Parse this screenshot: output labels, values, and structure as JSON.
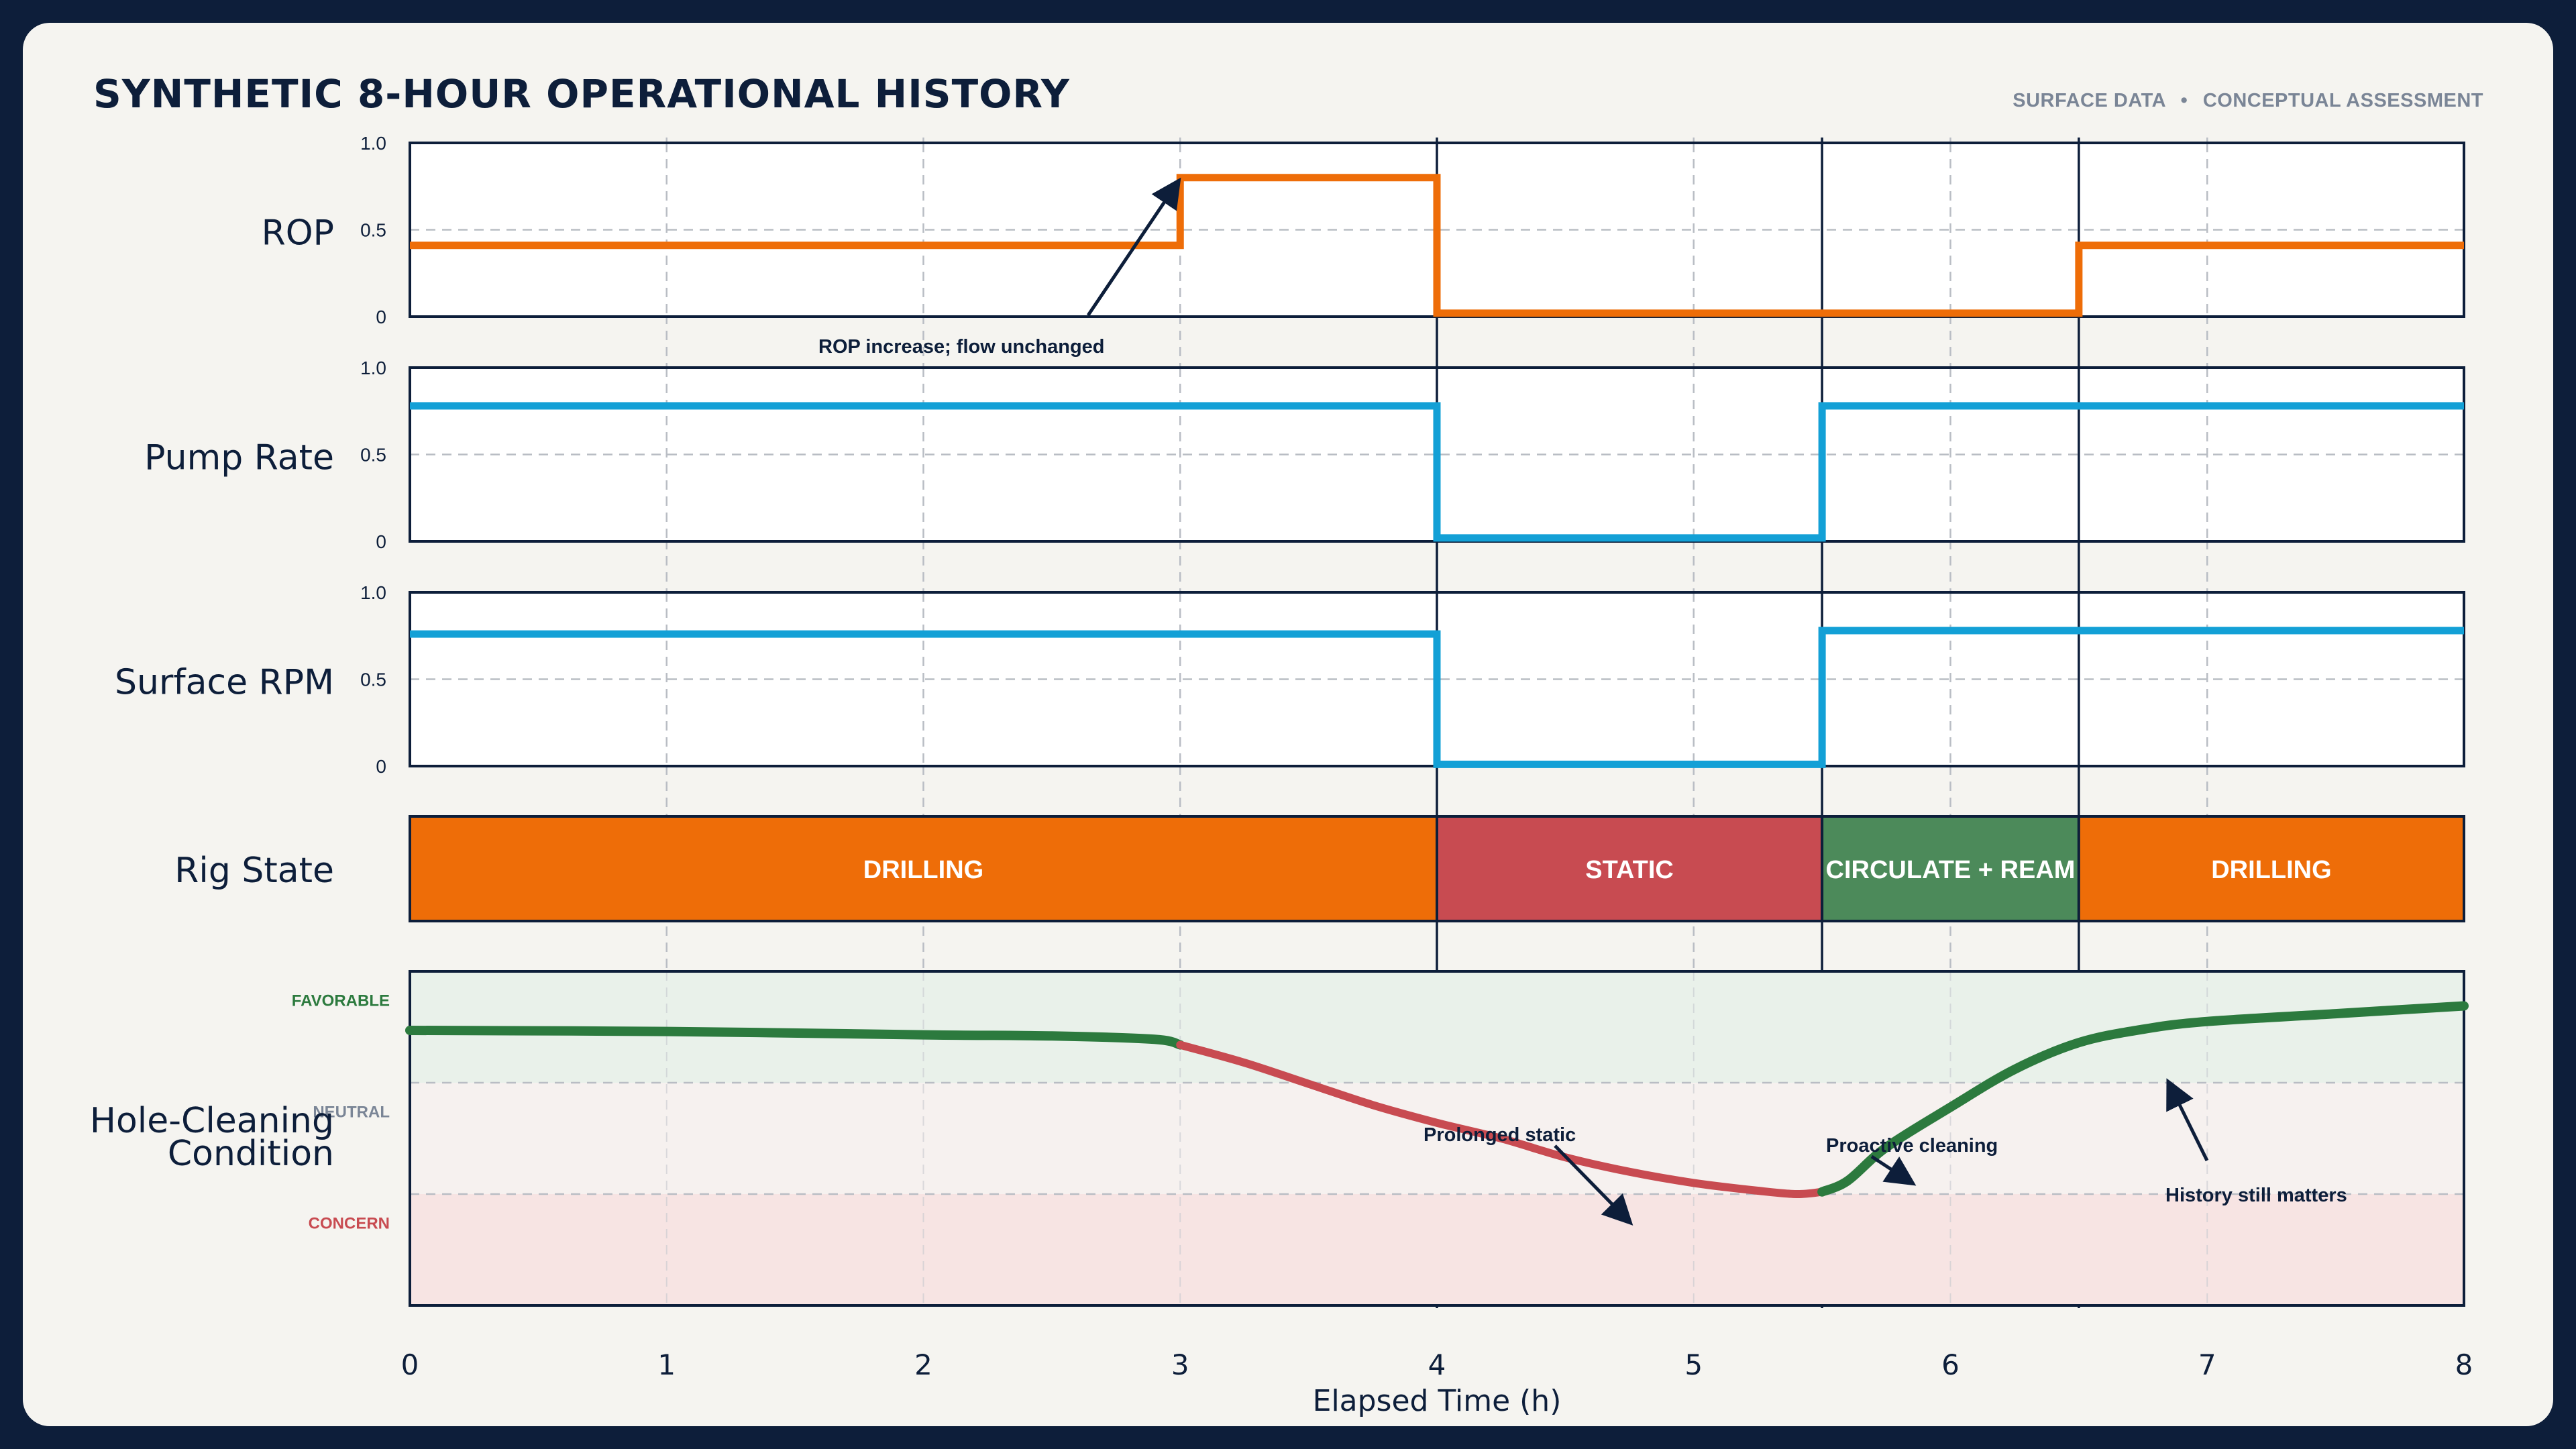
{
  "header": {
    "title": "SYNTHETIC 8-HOUR OPERATIONAL HISTORY",
    "subtitle_left": "SURFACE DATA",
    "subtitle_separator": "•",
    "subtitle_right": "CONCEPTUAL ASSESSMENT"
  },
  "colors": {
    "navy": "#0d1e3a",
    "orange": "#ee6d08",
    "blue": "#13a0d6",
    "red": "#c84b51",
    "green": "#2c7a3e",
    "green_fill": "#4c8a5a",
    "favorable_band": "#e9f1ea",
    "concern_band": "#f7e4e3"
  },
  "chart_data": {
    "type": "line",
    "x": [
      0,
      1,
      2,
      3,
      4,
      5,
      6,
      7,
      8
    ],
    "x_tick_labels": [
      "0",
      "1",
      "2",
      "3",
      "4",
      "5",
      "6",
      "7",
      "8"
    ],
    "xlabel": "Elapsed Time (h)",
    "xlim": [
      0,
      8
    ],
    "phase_boundaries_h": [
      4,
      5.5,
      6.5
    ],
    "panels": [
      {
        "label": "ROP",
        "ylim": [
          0,
          1
        ],
        "y_ticks": [
          0,
          0.5,
          1
        ],
        "y_tick_labels": [
          "0",
          "0.5",
          "1.0"
        ],
        "color": "#ee6d08",
        "steps": [
          {
            "x0": 0,
            "x1": 3,
            "y": 0.41
          },
          {
            "x0": 3,
            "x1": 4,
            "y": 0.8
          },
          {
            "x0": 4,
            "x1": 6.5,
            "y": 0.02
          },
          {
            "x0": 6.5,
            "x1": 8,
            "y": 0.41
          }
        ],
        "annotation": {
          "text": "ROP increase; flow unchanged",
          "target": [
            3,
            0.8
          ]
        }
      },
      {
        "label": "Pump Rate",
        "ylim": [
          0,
          1
        ],
        "y_ticks": [
          0,
          0.5,
          1
        ],
        "y_tick_labels": [
          "0",
          "0.5",
          "1.0"
        ],
        "color": "#13a0d6",
        "steps": [
          {
            "x0": 0,
            "x1": 4,
            "y": 0.78
          },
          {
            "x0": 4,
            "x1": 5.5,
            "y": 0.02
          },
          {
            "x0": 5.5,
            "x1": 8,
            "y": 0.78
          }
        ]
      },
      {
        "label": "Surface RPM",
        "ylim": [
          0,
          1
        ],
        "y_ticks": [
          0,
          0.5,
          1
        ],
        "y_tick_labels": [
          "0",
          "0.5",
          "1.0"
        ],
        "color": "#13a0d6",
        "steps": [
          {
            "x0": 0,
            "x1": 4,
            "y": 0.76
          },
          {
            "x0": 4,
            "x1": 5.5,
            "y": 0.01
          },
          {
            "x0": 5.5,
            "x1": 8,
            "y": 0.78
          }
        ]
      }
    ],
    "rig_state": {
      "label": "Rig State",
      "segments": [
        {
          "label": "DRILLING",
          "x0": 0,
          "x1": 4,
          "color": "#ee6d08"
        },
        {
          "label": "STATIC",
          "x0": 4,
          "x1": 5.5,
          "color": "#c84b51"
        },
        {
          "label": "CIRCULATE + REAM",
          "x0": 5.5,
          "x1": 6.5,
          "color": "#4c8a5a"
        },
        {
          "label": "DRILLING",
          "x0": 6.5,
          "x1": 8,
          "color": "#ee6d08"
        }
      ]
    },
    "hole_cleaning": {
      "label_line1": "Hole-Cleaning",
      "label_line2": "Condition",
      "ylim": [
        0,
        3
      ],
      "levels": [
        {
          "label": "FAVORABLE",
          "y": 2.75,
          "color": "#2c7a3e"
        },
        {
          "label": "NEUTRAL",
          "y": 1.75,
          "color": "#7a8596"
        },
        {
          "label": "CONCERN",
          "y": 0.75,
          "color": "#c84b51"
        }
      ],
      "band_lines": [
        2,
        1
      ],
      "curve": [
        [
          0,
          2.47
        ],
        [
          1,
          2.46
        ],
        [
          2,
          2.43
        ],
        [
          2.5,
          2.42
        ],
        [
          2.9,
          2.39
        ],
        [
          3,
          2.34
        ],
        [
          3.25,
          2.18
        ],
        [
          3.5,
          1.99
        ],
        [
          3.75,
          1.8
        ],
        [
          4,
          1.64
        ],
        [
          4.25,
          1.5
        ],
        [
          4.5,
          1.33
        ],
        [
          4.75,
          1.2
        ],
        [
          5,
          1.1
        ],
        [
          5.25,
          1.03
        ],
        [
          5.4,
          1.0
        ],
        [
          5.5,
          1.02
        ],
        [
          5.6,
          1.12
        ],
        [
          5.75,
          1.42
        ],
        [
          6,
          1.78
        ],
        [
          6.25,
          2.12
        ],
        [
          6.5,
          2.36
        ],
        [
          6.75,
          2.48
        ],
        [
          7,
          2.55
        ],
        [
          7.5,
          2.62
        ],
        [
          8,
          2.69
        ]
      ],
      "concern_interval": [
        3,
        5.5
      ],
      "annotations": [
        {
          "text": "Prolonged static",
          "target": [
            4.75,
            0.75
          ]
        },
        {
          "text": "Proactive cleaning",
          "target": [
            5.85,
            1.1
          ]
        },
        {
          "text": "History still matters",
          "target": [
            6.85,
            2.0
          ]
        }
      ]
    }
  }
}
